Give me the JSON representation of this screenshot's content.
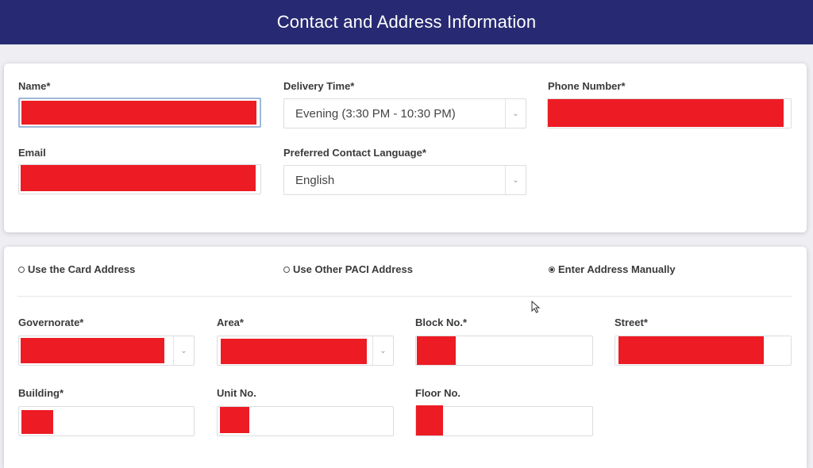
{
  "header": {
    "title": "Contact and Address Information"
  },
  "contact": {
    "name_label": "Name*",
    "delivery_label": "Delivery Time*",
    "delivery_value": "Evening (3:30 PM - 10:30 PM)",
    "phone_label": "Phone Number*",
    "email_label": "Email",
    "language_label": "Preferred Contact Language*",
    "language_value": "English"
  },
  "address": {
    "options": [
      {
        "label": "Use the Card Address",
        "selected": false
      },
      {
        "label": "Use Other PACI Address",
        "selected": false
      },
      {
        "label": "Enter Address Manually",
        "selected": true
      }
    ],
    "governorate_label": "Governorate*",
    "area_label": "Area*",
    "block_label": "Block No.*",
    "street_label": "Street*",
    "building_label": "Building*",
    "unit_label": "Unit No.",
    "floor_label": "Floor No."
  },
  "colors": {
    "header_bg": "#272a72",
    "redaction": "#ed1c24",
    "focus_border": "#9fb6d8"
  },
  "icons": {
    "caret": "chevron-down-icon",
    "cursor": "mouse-pointer-icon"
  }
}
